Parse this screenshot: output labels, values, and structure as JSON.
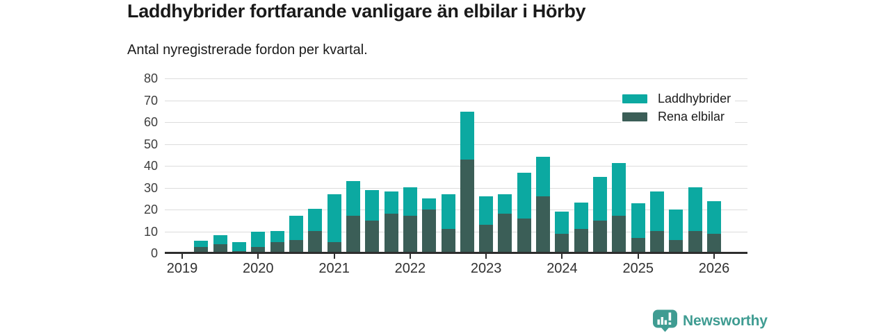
{
  "header": {
    "title": "Laddhybrider fortfarande vanligare än elbilar i Hörby",
    "subtitle": "Antal nyregistrerade fordon per kvartal."
  },
  "legend": {
    "items": [
      {
        "label": "Laddhybrider",
        "color": "#0ca9a1"
      },
      {
        "label": "Rena elbilar",
        "color": "#3b5e57"
      }
    ]
  },
  "brand": {
    "name": "Newsworthy",
    "color": "#3f9c92",
    "icon": "newsworthy-chart-bubble-icon"
  },
  "colors": {
    "laddhybrider": "#0ca9a1",
    "rena_elbilar": "#3b5e57",
    "axis": "#2e2e2e",
    "gridline": "#dcdcdc",
    "text": "#1a1a1a"
  },
  "chart_data": {
    "type": "bar",
    "stacked": true,
    "title": "Laddhybrider fortfarande vanligare än elbilar i Hörby",
    "subtitle": "Antal nyregistrerade fordon per kvartal.",
    "x": [
      "2019 Q1",
      "2019 Q2",
      "2019 Q3",
      "2019 Q4",
      "2020 Q1",
      "2020 Q2",
      "2020 Q3",
      "2020 Q4",
      "2021 Q1",
      "2021 Q2",
      "2021 Q3",
      "2021 Q4",
      "2022 Q1",
      "2022 Q2",
      "2022 Q3",
      "2022 Q4",
      "2023 Q1",
      "2023 Q2",
      "2023 Q3",
      "2023 Q4",
      "2024 Q1",
      "2024 Q2",
      "2024 Q3",
      "2024 Q4",
      "2025 Q1",
      "2025 Q2",
      "2025 Q3",
      "2025 Q4",
      "2026 Q1"
    ],
    "series": [
      {
        "name": "Rena elbilar",
        "stack_position": "bottom",
        "color": "#3b5e57",
        "values": [
          0,
          3,
          4,
          1,
          3,
          5,
          6,
          10,
          5,
          17,
          15,
          18,
          17,
          20,
          11,
          43,
          13,
          18,
          16,
          26,
          9,
          11,
          15,
          17,
          7,
          10,
          6,
          10,
          9
        ]
      },
      {
        "name": "Laddhybrider",
        "stack_position": "top",
        "color": "#0ca9a1",
        "values": [
          0,
          3,
          4,
          4,
          7,
          5,
          11,
          10,
          22,
          16,
          14,
          10,
          13,
          5,
          16,
          22,
          13,
          9,
          21,
          18,
          10,
          12,
          20,
          24,
          16,
          18,
          14,
          20,
          15
        ]
      }
    ],
    "totals": [
      0,
      6,
      8,
      5,
      10,
      10,
      17,
      20,
      27,
      33,
      29,
      28,
      30,
      25,
      27,
      65,
      26,
      27,
      37,
      44,
      19,
      23,
      35,
      41,
      23,
      28,
      20,
      30,
      24
    ],
    "ylabel": "",
    "xlabel": "",
    "ylim": [
      0,
      80
    ],
    "yticks": [
      0,
      10,
      20,
      30,
      40,
      50,
      60,
      70,
      80
    ],
    "xticks_years": [
      "2019",
      "2020",
      "2021",
      "2022",
      "2023",
      "2024",
      "2025",
      "2026"
    ],
    "grid": "horizontal",
    "legend_position": "top-right"
  }
}
